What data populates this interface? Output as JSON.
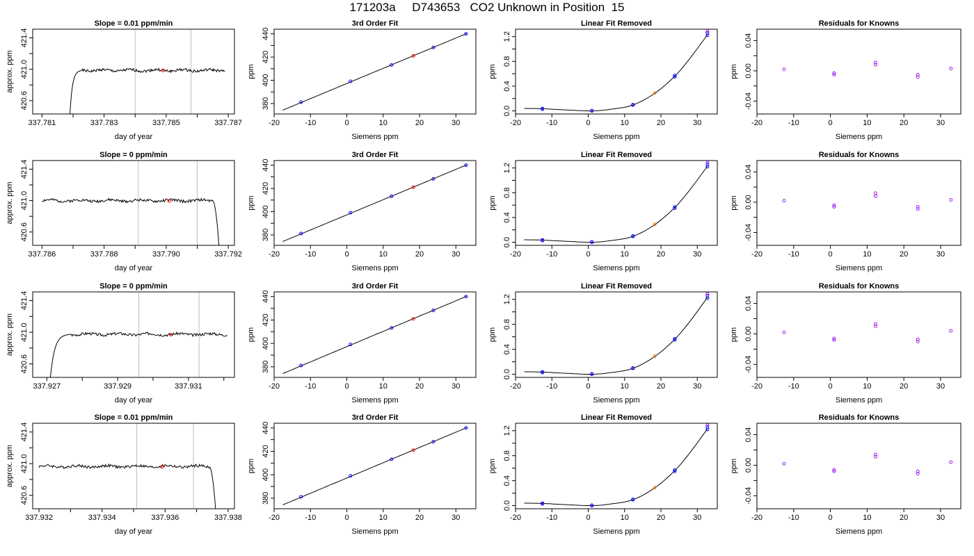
{
  "page": {
    "title": "171203a     D743653   CO2 Unknown in Position  15"
  },
  "colors": {
    "trace": "#000000",
    "marker": "#ff0000",
    "known": "#0000ff",
    "unknown_fit": "#ff8000",
    "residual": "#a020f0",
    "vline": "#bebebe"
  },
  "chart_data": [
    {
      "type": "line",
      "panel": "timeseries",
      "title": "Slope =  0.01  ppm/min",
      "xlabel": "day of year",
      "ylabel": "approx. ppm",
      "xlim": [
        337.7807,
        337.7872
      ],
      "ylim": [
        420.43,
        421.51
      ],
      "xticks": [
        337.781,
        337.782,
        337.783,
        337.784,
        337.785,
        337.786,
        337.787
      ],
      "xtick_labels": [
        "337.781",
        "",
        "337.783",
        "",
        "337.785",
        "",
        "337.787"
      ],
      "yticks": [
        420.6,
        420.8,
        421.0,
        421.2,
        421.4
      ],
      "ytick_labels": [
        "420.6",
        "",
        "421.0",
        "",
        "421.4"
      ],
      "vlines": [
        337.784,
        337.7858
      ],
      "trace": {
        "start": 337.7819,
        "end": 337.7869,
        "level": 420.985,
        "edge": "rise",
        "edge_end": 337.7823,
        "edge_value": 420.43,
        "seed": 1
      },
      "marker": {
        "x": 337.7849,
        "y": 420.985
      }
    },
    {
      "type": "line",
      "panel": "fit",
      "title": "3rd Order Fit",
      "xlabel": "Siemens ppm",
      "ylabel": "ppm",
      "xlim": [
        -20,
        35.5
      ],
      "ylim": [
        371,
        444
      ],
      "xticks": [
        -20,
        -10,
        0,
        10,
        20,
        30
      ],
      "xtick_labels": [
        "-20",
        "-10",
        "0",
        "10",
        "20",
        "30"
      ],
      "yticks": [
        380,
        390,
        400,
        410,
        420,
        430,
        440
      ],
      "ytick_labels": [
        "380",
        "",
        "400",
        "",
        "420",
        "",
        "440"
      ],
      "curve": {
        "x": [
          -17.6,
          33
        ],
        "y": [
          374.3,
          440.3
        ]
      },
      "knowns": {
        "x": [
          -12.6,
          1.0,
          12.3,
          23.8,
          32.8
        ],
        "y": [
          381.2,
          399.1,
          413.2,
          428.2,
          440.0
        ]
      },
      "unknown": {
        "x": 18.3,
        "y": 421.0
      }
    },
    {
      "type": "line",
      "panel": "linear_removed",
      "title": "Linear Fit Removed",
      "xlabel": "Siemens ppm",
      "ylabel": "ppm",
      "xlim": [
        -20,
        35.5
      ],
      "ylim": [
        -0.05,
        1.32
      ],
      "xticks": [
        -20,
        -10,
        0,
        10,
        20,
        30
      ],
      "xtick_labels": [
        "-20",
        "-10",
        "0",
        "10",
        "20",
        "30"
      ],
      "yticks": [
        0.0,
        0.2,
        0.4,
        0.6,
        0.8,
        1.0,
        1.2
      ],
      "ytick_labels": [
        "0.0",
        "",
        "0.4",
        "",
        "0.8",
        "",
        "1.2"
      ],
      "curve": {
        "x": [
          -17.6,
          -12.6,
          -6,
          1,
          6,
          12.3,
          18.3,
          23.8,
          28,
          32.8
        ],
        "y": [
          0.04,
          0.035,
          0.015,
          0.0,
          0.025,
          0.095,
          0.285,
          0.56,
          0.85,
          1.23
        ]
      },
      "knowns": {
        "x": [
          -12.6,
          -12.6,
          1.0,
          1.0,
          12.3,
          12.3,
          23.8,
          23.8,
          32.8,
          32.8
        ],
        "y": [
          0.037,
          0.028,
          0.005,
          0.0,
          0.1,
          0.095,
          0.57,
          0.55,
          1.26,
          1.22
        ]
      },
      "unknown": {
        "x": 18.3,
        "y": 0.29
      },
      "unknown_top": {
        "x": 32.8,
        "y": 1.29
      }
    },
    {
      "type": "scatter",
      "panel": "residuals",
      "title": "Residuals for Knowns",
      "xlabel": "Siemens ppm",
      "ylabel": "ppm",
      "xlim": [
        -20,
        35.5
      ],
      "ylim": [
        -0.057,
        0.055
      ],
      "xticks": [
        -20,
        -10,
        0,
        10,
        20,
        30
      ],
      "xtick_labels": [
        "-20",
        "-10",
        "0",
        "10",
        "20",
        "30"
      ],
      "yticks": [
        -0.04,
        -0.02,
        0.0,
        0.02,
        0.04
      ],
      "ytick_labels": [
        "-0.04",
        "",
        "0.00",
        "",
        "0.04"
      ],
      "points": {
        "x": [
          -12.6,
          1.0,
          1.0,
          12.3,
          12.3,
          23.8,
          23.8,
          32.8
        ],
        "y": [
          0.002,
          -0.003,
          -0.005,
          0.011,
          0.008,
          -0.005,
          -0.008,
          0.003
        ]
      }
    },
    {
      "type": "line",
      "panel": "timeseries",
      "title": "Slope =  0  ppm/min",
      "xlabel": "day of year",
      "ylabel": "approx. ppm",
      "xlim": [
        337.7857,
        337.7922
      ],
      "ylim": [
        420.43,
        421.51
      ],
      "xticks": [
        337.786,
        337.787,
        337.788,
        337.789,
        337.79,
        337.791,
        337.792
      ],
      "xtick_labels": [
        "337.786",
        "",
        "337.788",
        "",
        "337.790",
        "",
        "337.792"
      ],
      "yticks": [
        420.6,
        420.8,
        421.0,
        421.2,
        421.4
      ],
      "ytick_labels": [
        "420.6",
        "",
        "421.0",
        "",
        "421.4"
      ],
      "vlines": [
        337.7891,
        337.791
      ],
      "trace": {
        "start": 337.786,
        "end": 337.7917,
        "level": 421.0,
        "edge": "fall",
        "edge_end": 337.7917,
        "edge_value": 420.43,
        "seed": 2
      },
      "marker": {
        "x": 337.7901,
        "y": 420.995
      }
    },
    {
      "type": "line",
      "panel": "fit",
      "title": "3rd Order Fit",
      "xlabel": "Siemens ppm",
      "ylabel": "ppm",
      "xlim": [
        -20,
        35.5
      ],
      "ylim": [
        371,
        444
      ],
      "xticks": [
        -20,
        -10,
        0,
        10,
        20,
        30
      ],
      "xtick_labels": [
        "-20",
        "-10",
        "0",
        "10",
        "20",
        "30"
      ],
      "yticks": [
        380,
        390,
        400,
        410,
        420,
        430,
        440
      ],
      "ytick_labels": [
        "380",
        "",
        "400",
        "",
        "420",
        "",
        "440"
      ],
      "curve": {
        "x": [
          -17.6,
          33
        ],
        "y": [
          374.3,
          440.3
        ]
      },
      "knowns": {
        "x": [
          -12.6,
          1.0,
          12.3,
          23.8,
          32.8
        ],
        "y": [
          381.2,
          399.1,
          413.2,
          428.2,
          440.0
        ]
      },
      "unknown": {
        "x": 18.3,
        "y": 421.0
      }
    },
    {
      "type": "line",
      "panel": "linear_removed",
      "title": "Linear Fit Removed",
      "xlabel": "Siemens ppm",
      "ylabel": "ppm",
      "xlim": [
        -20,
        35.5
      ],
      "ylim": [
        -0.05,
        1.32
      ],
      "xticks": [
        -20,
        -10,
        0,
        10,
        20,
        30
      ],
      "xtick_labels": [
        "-20",
        "-10",
        "0",
        "10",
        "20",
        "30"
      ],
      "yticks": [
        0.0,
        0.2,
        0.4,
        0.6,
        0.8,
        1.0,
        1.2
      ],
      "ytick_labels": [
        "0.0",
        "",
        "0.4",
        "",
        "0.8",
        "",
        "1.2"
      ],
      "curve": {
        "x": [
          -17.6,
          -12.6,
          -6,
          1,
          6,
          12.3,
          18.3,
          23.8,
          28,
          32.8
        ],
        "y": [
          0.04,
          0.035,
          0.015,
          0.0,
          0.025,
          0.095,
          0.285,
          0.56,
          0.85,
          1.23
        ]
      },
      "knowns": {
        "x": [
          -12.6,
          -12.6,
          1.0,
          1.0,
          12.3,
          12.3,
          23.8,
          23.8,
          32.8,
          32.8
        ],
        "y": [
          0.037,
          0.028,
          0.005,
          0.0,
          0.1,
          0.095,
          0.57,
          0.55,
          1.26,
          1.22
        ]
      },
      "unknown": {
        "x": 18.3,
        "y": 0.29
      },
      "unknown_top": {
        "x": 32.8,
        "y": 1.29
      }
    },
    {
      "type": "scatter",
      "panel": "residuals",
      "title": "Residuals for Knowns",
      "xlabel": "Siemens ppm",
      "ylabel": "ppm",
      "xlim": [
        -20,
        35.5
      ],
      "ylim": [
        -0.057,
        0.055
      ],
      "xticks": [
        -20,
        -10,
        0,
        10,
        20,
        30
      ],
      "xtick_labels": [
        "-20",
        "-10",
        "0",
        "10",
        "20",
        "30"
      ],
      "yticks": [
        -0.04,
        -0.02,
        0.0,
        0.02,
        0.04
      ],
      "ytick_labels": [
        "-0.04",
        "",
        "0.00",
        "",
        "0.04"
      ],
      "points": {
        "x": [
          -12.6,
          1.0,
          1.0,
          12.3,
          12.3,
          23.8,
          23.8,
          32.8
        ],
        "y": [
          0.002,
          -0.004,
          -0.006,
          0.012,
          0.008,
          -0.006,
          -0.009,
          0.003
        ]
      }
    },
    {
      "type": "line",
      "panel": "timeseries",
      "title": "Slope =  0  ppm/min",
      "xlabel": "day of year",
      "ylabel": "approx. ppm",
      "xlim": [
        337.9266,
        337.9323
      ],
      "ylim": [
        420.43,
        421.51
      ],
      "xticks": [
        337.927,
        337.928,
        337.929,
        337.93,
        337.931,
        337.932
      ],
      "xtick_labels": [
        "337.927",
        "",
        "337.929",
        "",
        "337.931",
        ""
      ],
      "yticks": [
        420.6,
        420.8,
        421.0,
        421.2,
        421.4
      ],
      "ytick_labels": [
        "420.6",
        "",
        "421.0",
        "",
        "421.4"
      ],
      "vlines": [
        337.9296,
        337.9313
      ],
      "trace": {
        "start": 337.9271,
        "end": 337.9321,
        "level": 420.975,
        "edge": "rise",
        "edge_end": 337.9277,
        "edge_value": 420.43,
        "seed": 3
      },
      "marker": {
        "x": 337.9305,
        "y": 420.97
      }
    },
    {
      "type": "line",
      "panel": "fit",
      "title": "3rd Order Fit",
      "xlabel": "Siemens ppm",
      "ylabel": "ppm",
      "xlim": [
        -20,
        35.5
      ],
      "ylim": [
        371,
        444
      ],
      "xticks": [
        -20,
        -10,
        0,
        10,
        20,
        30
      ],
      "xtick_labels": [
        "-20",
        "-10",
        "0",
        "10",
        "20",
        "30"
      ],
      "yticks": [
        380,
        390,
        400,
        410,
        420,
        430,
        440
      ],
      "ytick_labels": [
        "380",
        "",
        "400",
        "",
        "420",
        "",
        "440"
      ],
      "curve": {
        "x": [
          -17.6,
          33
        ],
        "y": [
          374.3,
          440.3
        ]
      },
      "knowns": {
        "x": [
          -12.6,
          1.0,
          12.3,
          23.8,
          32.8
        ],
        "y": [
          381.2,
          399.1,
          413.2,
          428.2,
          440.0
        ]
      },
      "unknown": {
        "x": 18.3,
        "y": 421.0
      }
    },
    {
      "type": "line",
      "panel": "linear_removed",
      "title": "Linear Fit Removed",
      "xlabel": "Siemens ppm",
      "ylabel": "ppm",
      "xlim": [
        -20,
        35.5
      ],
      "ylim": [
        -0.05,
        1.32
      ],
      "xticks": [
        -20,
        -10,
        0,
        10,
        20,
        30
      ],
      "xtick_labels": [
        "-20",
        "-10",
        "0",
        "10",
        "20",
        "30"
      ],
      "yticks": [
        0.0,
        0.2,
        0.4,
        0.6,
        0.8,
        1.0,
        1.2
      ],
      "ytick_labels": [
        "0.0",
        "",
        "0.4",
        "",
        "0.8",
        "",
        "1.2"
      ],
      "curve": {
        "x": [
          -17.6,
          -12.6,
          -6,
          1,
          6,
          12.3,
          18.3,
          23.8,
          28,
          32.8
        ],
        "y": [
          0.04,
          0.035,
          0.015,
          0.0,
          0.025,
          0.095,
          0.285,
          0.56,
          0.85,
          1.23
        ]
      },
      "knowns": {
        "x": [
          -12.6,
          -12.6,
          1.0,
          1.0,
          12.3,
          12.3,
          23.8,
          23.8,
          32.8,
          32.8
        ],
        "y": [
          0.037,
          0.028,
          0.005,
          0.0,
          0.1,
          0.095,
          0.57,
          0.55,
          1.26,
          1.22
        ]
      },
      "unknown": {
        "x": 18.3,
        "y": 0.29
      },
      "unknown_top": {
        "x": 32.8,
        "y": 1.29
      }
    },
    {
      "type": "scatter",
      "panel": "residuals",
      "title": "Residuals for Knowns",
      "xlabel": "Siemens ppm",
      "ylabel": "ppm",
      "xlim": [
        -20,
        35.5
      ],
      "ylim": [
        -0.057,
        0.055
      ],
      "xticks": [
        -20,
        -10,
        0,
        10,
        20,
        30
      ],
      "xtick_labels": [
        "-20",
        "-10",
        "0",
        "10",
        "20",
        "30"
      ],
      "yticks": [
        -0.04,
        -0.02,
        0.0,
        0.02,
        0.04
      ],
      "ytick_labels": [
        "-0.04",
        "",
        "0.00",
        "",
        "0.04"
      ],
      "points": {
        "x": [
          -12.6,
          1.0,
          1.0,
          12.3,
          12.3,
          23.8,
          23.8,
          32.8
        ],
        "y": [
          0.002,
          -0.006,
          -0.008,
          0.013,
          0.01,
          -0.007,
          -0.01,
          0.004
        ]
      }
    },
    {
      "type": "line",
      "panel": "timeseries",
      "title": "Slope =  0.01  ppm/min",
      "xlabel": "day of year",
      "ylabel": "approx. ppm",
      "xlim": [
        337.9318,
        337.9382
      ],
      "ylim": [
        420.43,
        421.51
      ],
      "xticks": [
        337.932,
        337.933,
        337.934,
        337.935,
        337.936,
        337.937,
        337.938
      ],
      "xtick_labels": [
        "337.932",
        "",
        "337.934",
        "",
        "337.936",
        "",
        "337.938"
      ],
      "yticks": [
        420.6,
        420.8,
        421.0,
        421.2,
        421.4
      ],
      "ytick_labels": [
        "420.6",
        "",
        "421.0",
        "",
        "421.4"
      ],
      "vlines": [
        337.9351,
        337.9369
      ],
      "trace": {
        "start": 337.932,
        "end": 337.9376,
        "level": 420.965,
        "edge": "fall",
        "edge_end": 337.9376,
        "edge_value": 420.43,
        "seed": 4
      },
      "marker": {
        "x": 337.9359,
        "y": 420.96
      }
    },
    {
      "type": "line",
      "panel": "fit",
      "title": "3rd Order Fit",
      "xlabel": "Siemens ppm",
      "ylabel": "ppm",
      "xlim": [
        -20,
        35.5
      ],
      "ylim": [
        371,
        444
      ],
      "xticks": [
        -20,
        -10,
        0,
        10,
        20,
        30
      ],
      "xtick_labels": [
        "-20",
        "-10",
        "0",
        "10",
        "20",
        "30"
      ],
      "yticks": [
        380,
        390,
        400,
        410,
        420,
        430,
        440
      ],
      "ytick_labels": [
        "380",
        "",
        "400",
        "",
        "420",
        "",
        "440"
      ],
      "curve": {
        "x": [
          -17.6,
          33
        ],
        "y": [
          374.3,
          440.3
        ]
      },
      "knowns": {
        "x": [
          -12.6,
          1.0,
          12.3,
          23.8,
          32.8
        ],
        "y": [
          381.2,
          399.1,
          413.2,
          428.2,
          440.0
        ]
      },
      "unknown": {
        "x": 18.3,
        "y": 421.0
      }
    },
    {
      "type": "line",
      "panel": "linear_removed",
      "title": "Linear Fit Removed",
      "xlabel": "Siemens ppm",
      "ylabel": "ppm",
      "xlim": [
        -20,
        35.5
      ],
      "ylim": [
        -0.05,
        1.32
      ],
      "xticks": [
        -20,
        -10,
        0,
        10,
        20,
        30
      ],
      "xtick_labels": [
        "-20",
        "-10",
        "0",
        "10",
        "20",
        "30"
      ],
      "yticks": [
        0.0,
        0.2,
        0.4,
        0.6,
        0.8,
        1.0,
        1.2
      ],
      "ytick_labels": [
        "0.0",
        "",
        "0.4",
        "",
        "0.8",
        "",
        "1.2"
      ],
      "curve": {
        "x": [
          -17.6,
          -12.6,
          -6,
          1,
          6,
          12.3,
          18.3,
          23.8,
          28,
          32.8
        ],
        "y": [
          0.04,
          0.035,
          0.015,
          0.0,
          0.025,
          0.095,
          0.285,
          0.56,
          0.85,
          1.23
        ]
      },
      "knowns": {
        "x": [
          -12.6,
          -12.6,
          1.0,
          1.0,
          12.3,
          12.3,
          23.8,
          23.8,
          32.8,
          32.8
        ],
        "y": [
          0.037,
          0.028,
          0.005,
          0.0,
          0.1,
          0.095,
          0.57,
          0.55,
          1.26,
          1.22
        ]
      },
      "unknown": {
        "x": 18.3,
        "y": 0.29
      },
      "unknown_top": {
        "x": 32.8,
        "y": 1.29
      }
    },
    {
      "type": "scatter",
      "panel": "residuals",
      "title": "Residuals for Knowns",
      "xlabel": "Siemens ppm",
      "ylabel": "ppm",
      "xlim": [
        -20,
        35.5
      ],
      "ylim": [
        -0.057,
        0.055
      ],
      "xticks": [
        -20,
        -10,
        0,
        10,
        20,
        30
      ],
      "xtick_labels": [
        "-20",
        "-10",
        "0",
        "10",
        "20",
        "30"
      ],
      "yticks": [
        -0.04,
        -0.02,
        0.0,
        0.02,
        0.04
      ],
      "ytick_labels": [
        "-0.04",
        "",
        "0.00",
        "",
        "0.04"
      ],
      "points": {
        "x": [
          -12.6,
          1.0,
          1.0,
          12.3,
          12.3,
          23.8,
          23.8,
          32.8
        ],
        "y": [
          0.002,
          -0.006,
          -0.008,
          0.014,
          0.011,
          -0.008,
          -0.011,
          0.004
        ]
      }
    }
  ]
}
